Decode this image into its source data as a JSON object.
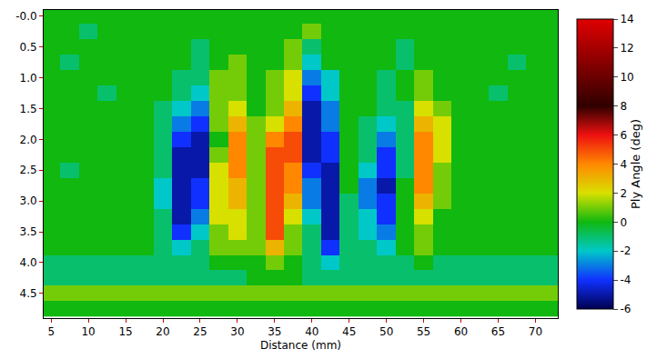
{
  "chart_data": {
    "type": "heatmap",
    "xlabel": "Distance (mm)",
    "x": [
      5,
      7.5,
      10,
      12.5,
      15,
      17.5,
      20,
      22.5,
      25,
      27.5,
      30,
      32.5,
      35,
      37.5,
      40,
      42.5,
      45,
      47.5,
      50,
      52.5,
      55,
      57.5,
      60,
      62.5,
      65,
      67.5,
      70,
      72.5
    ],
    "y": [
      0,
      0.25,
      0.5,
      0.75,
      1,
      1.25,
      1.5,
      1.75,
      2,
      2.25,
      2.5,
      2.75,
      3,
      3.25,
      3.5,
      3.75,
      4,
      4.25,
      4.5,
      4.75
    ],
    "z": [
      [
        0,
        0,
        0,
        0,
        0,
        0,
        0,
        0,
        0,
        0,
        0,
        0,
        0,
        0,
        0,
        0,
        0,
        0,
        0,
        0,
        0,
        0,
        0,
        0,
        0,
        0,
        0,
        0
      ],
      [
        0,
        0,
        -1,
        0,
        0,
        0,
        0,
        0,
        0,
        0,
        0,
        0,
        0,
        0,
        1,
        0,
        0,
        0,
        0,
        0,
        0,
        0,
        0,
        0,
        0,
        0,
        0,
        0
      ],
      [
        0,
        0,
        0,
        0,
        0,
        0,
        0,
        0,
        -1,
        0,
        0,
        0,
        0,
        1,
        -1,
        0,
        0,
        0,
        0,
        -1,
        0,
        0,
        0,
        0,
        0,
        0,
        0,
        0
      ],
      [
        0,
        -1,
        0,
        0,
        0,
        0,
        0,
        0,
        -1,
        0,
        1,
        0,
        0,
        1,
        -2,
        0,
        0,
        0,
        0,
        -1,
        0,
        0,
        0,
        0,
        0,
        -1,
        0,
        0
      ],
      [
        0,
        0,
        0,
        0,
        0,
        0,
        0,
        -1,
        -1,
        1,
        1,
        0,
        1,
        2,
        -3,
        -2,
        0,
        0,
        -1,
        0,
        1,
        0,
        0,
        0,
        0,
        0,
        0,
        0
      ],
      [
        0,
        0,
        0,
        -1,
        0,
        0,
        0,
        -1,
        -2,
        1,
        1,
        0,
        1,
        2,
        -4,
        -2,
        0,
        0,
        -1,
        0,
        1,
        0,
        0,
        0,
        -1,
        0,
        0,
        0
      ],
      [
        0,
        0,
        0,
        0,
        0,
        0,
        -1,
        -2,
        -3,
        1,
        2,
        0,
        1,
        3,
        -5,
        -3,
        0,
        0,
        -1,
        -1,
        2,
        1,
        0,
        0,
        0,
        0,
        0,
        0
      ],
      [
        0,
        0,
        0,
        0,
        0,
        0,
        -1,
        -3,
        -4,
        1,
        3,
        1,
        2,
        4,
        -5,
        -3,
        0,
        -1,
        -2,
        -1,
        3,
        2,
        0,
        0,
        0,
        0,
        0,
        0
      ],
      [
        0,
        0,
        0,
        0,
        0,
        0,
        -1,
        -4,
        -5,
        0,
        4,
        1,
        4,
        5,
        -5,
        -4,
        0,
        -1,
        -3,
        -1,
        4,
        2,
        0,
        0,
        0,
        0,
        0,
        0
      ],
      [
        0,
        0,
        0,
        0,
        0,
        0,
        -1,
        -5,
        -5,
        1,
        4,
        1,
        5,
        5,
        -5,
        -4,
        0,
        -1,
        -4,
        -1,
        4,
        2,
        0,
        0,
        0,
        0,
        0,
        0
      ],
      [
        0,
        -1,
        0,
        0,
        0,
        0,
        -1,
        -5,
        -5,
        2,
        4,
        1,
        5,
        4,
        -4,
        -5,
        0,
        -2,
        -4,
        -1,
        4,
        1,
        0,
        0,
        0,
        0,
        0,
        0
      ],
      [
        0,
        0,
        0,
        0,
        0,
        0,
        -2,
        -5,
        -4,
        2,
        3,
        1,
        5,
        4,
        -3,
        -5,
        0,
        -3,
        -5,
        0,
        4,
        1,
        0,
        0,
        0,
        0,
        0,
        0
      ],
      [
        0,
        0,
        0,
        0,
        0,
        0,
        -2,
        -5,
        -4,
        2,
        3,
        1,
        5,
        3,
        -3,
        -5,
        -1,
        -3,
        -4,
        0,
        3,
        1,
        0,
        0,
        0,
        0,
        0,
        0
      ],
      [
        0,
        0,
        0,
        0,
        0,
        0,
        -1,
        -5,
        -3,
        2,
        2,
        1,
        5,
        2,
        -2,
        -5,
        -1,
        -2,
        -4,
        0,
        2,
        0,
        0,
        0,
        0,
        0,
        0,
        0
      ],
      [
        0,
        0,
        0,
        0,
        0,
        0,
        -1,
        -4,
        -2,
        1,
        2,
        1,
        5,
        1,
        -1,
        -5,
        -1,
        -2,
        -3,
        0,
        1,
        0,
        0,
        0,
        0,
        0,
        0,
        0
      ],
      [
        0,
        0,
        0,
        0,
        0,
        0,
        -1,
        -2,
        -1,
        1,
        1,
        1,
        3,
        1,
        -1,
        -4,
        -1,
        -1,
        -2,
        0,
        1,
        0,
        0,
        0,
        0,
        0,
        0,
        0
      ],
      [
        -1,
        -1,
        -1,
        -1,
        -1,
        -1,
        -1,
        -1,
        -1,
        0,
        0,
        0,
        1,
        0,
        -1,
        -2,
        -1,
        -1,
        -1,
        -1,
        0,
        -1,
        -1,
        -1,
        -1,
        -1,
        -1,
        -1
      ],
      [
        -1,
        -1,
        -1,
        -1,
        -1,
        -1,
        -1,
        -1,
        -1,
        -1,
        -1,
        0,
        0,
        0,
        -1,
        -1,
        -1,
        -1,
        -1,
        -1,
        -1,
        -1,
        -1,
        -1,
        -1,
        -1,
        -1,
        -1
      ],
      [
        1,
        1,
        1,
        1,
        1,
        1,
        1,
        1,
        1,
        1,
        1,
        1,
        1,
        1,
        1,
        1,
        1,
        1,
        1,
        1,
        1,
        1,
        1,
        1,
        1,
        1,
        1,
        1
      ],
      [
        0,
        0,
        0,
        0,
        0,
        0,
        0,
        0,
        0,
        0,
        0,
        0,
        0,
        0,
        0,
        0,
        0,
        0,
        0,
        0,
        0,
        0,
        0,
        0,
        0,
        0,
        0,
        0
      ]
    ],
    "xlim": [
      4,
      73
    ],
    "xticks": [
      5,
      10,
      15,
      20,
      25,
      30,
      35,
      40,
      45,
      50,
      55,
      60,
      65,
      70
    ],
    "ylim": [
      4.9,
      -0.1
    ],
    "yticks": [
      {
        "value": 0,
        "label": "-0.0"
      },
      0.5,
      {
        "value": 1,
        "label": "1.0"
      },
      1.5,
      {
        "value": 2,
        "label": "2.0"
      },
      2.5,
      {
        "value": 3,
        "label": "3.0"
      },
      3.5,
      {
        "value": 4,
        "label": "4.0"
      },
      4.5
    ],
    "colorbar": {
      "title": "Ply Angle (deg)",
      "range": [
        -6,
        14
      ],
      "ticks": [
        -6,
        -4,
        -2,
        0,
        2,
        4,
        6,
        8,
        10,
        12,
        14
      ]
    }
  }
}
